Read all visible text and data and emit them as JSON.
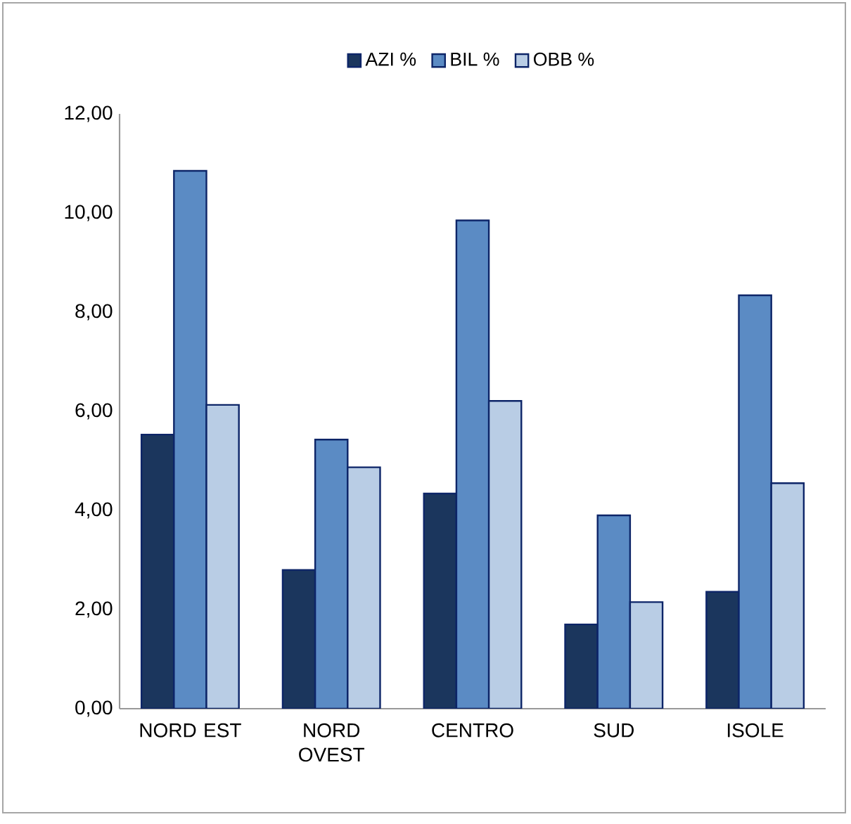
{
  "chart_data": {
    "type": "bar",
    "categories": [
      "NORD EST",
      "NORD OVEST",
      "CENTRO",
      "SUD",
      "ISOLE"
    ],
    "series": [
      {
        "name": "AZI %",
        "color": "#1b365d",
        "values": [
          5.53,
          2.8,
          4.34,
          1.7,
          2.36
        ]
      },
      {
        "name": "BIL %",
        "color": "#5b8bc4",
        "values": [
          10.85,
          5.43,
          9.85,
          3.9,
          8.34
        ]
      },
      {
        "name": "OBB %",
        "color": "#b9cde5",
        "values": [
          6.13,
          4.87,
          6.21,
          2.15,
          4.55
        ]
      }
    ],
    "ylim": [
      0,
      12
    ],
    "yticks": [
      {
        "value": 0,
        "label": "0,00"
      },
      {
        "value": 2,
        "label": "2,00"
      },
      {
        "value": 4,
        "label": "4,00"
      },
      {
        "value": 6,
        "label": "6,00"
      },
      {
        "value": 8,
        "label": "8,00"
      },
      {
        "value": 10,
        "label": "10,00"
      },
      {
        "value": 12,
        "label": "12,00"
      }
    ],
    "grid": false,
    "legend": "top"
  }
}
